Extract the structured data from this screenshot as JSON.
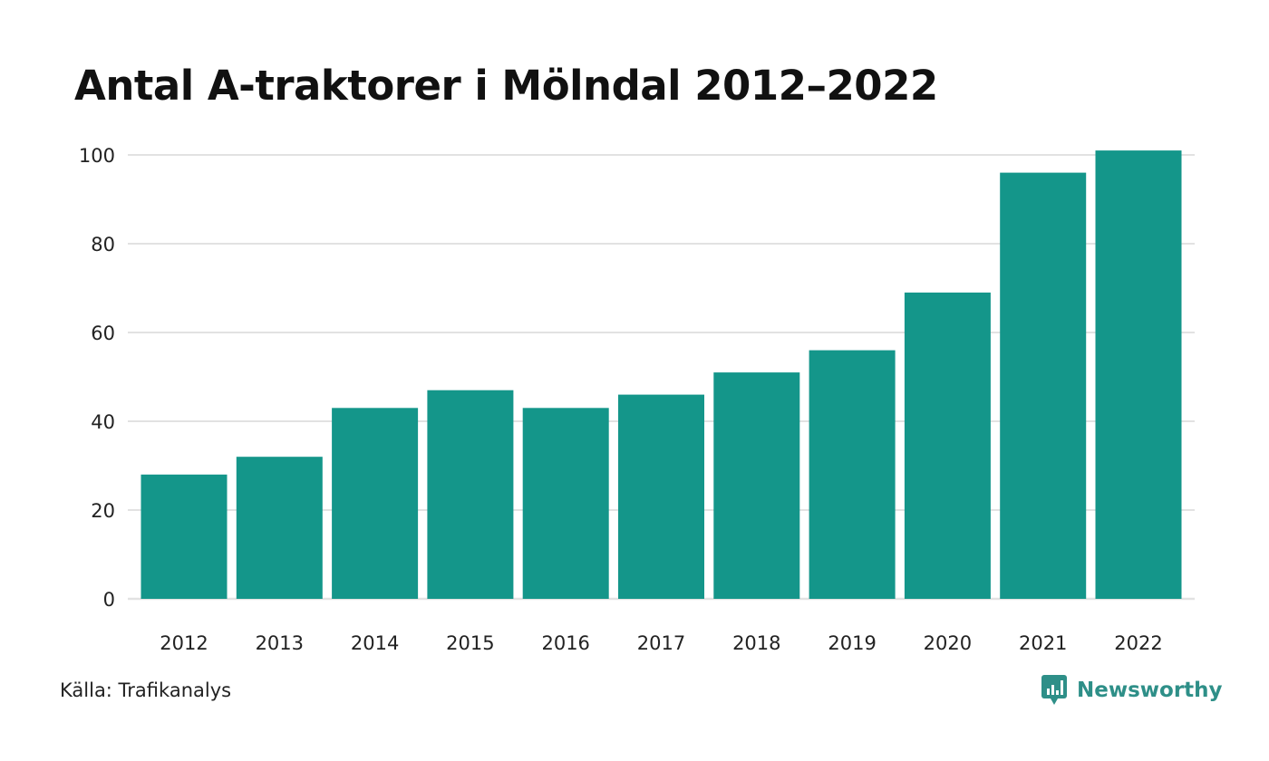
{
  "title": "Antal A-traktorer i Mölndal 2012–2022",
  "source": "Källa: Trafikanalys",
  "brand": {
    "name": "Newsworthy",
    "icon": "newsworthy-logo-icon"
  },
  "colors": {
    "bar": "#14968a",
    "grid": "#e2e2e2",
    "text": "#111111",
    "brand": "#2e8f88"
  },
  "chart_data": {
    "type": "bar",
    "title": "Antal A-traktorer i Mölndal 2012–2022",
    "xlabel": "",
    "ylabel": "",
    "categories": [
      "2012",
      "2013",
      "2014",
      "2015",
      "2016",
      "2017",
      "2018",
      "2019",
      "2020",
      "2021",
      "2022"
    ],
    "values": [
      28,
      32,
      43,
      47,
      43,
      46,
      51,
      56,
      69,
      96,
      101
    ],
    "ylim": [
      0,
      100
    ],
    "yticks": [
      0,
      20,
      40,
      60,
      80,
      100
    ],
    "grid": true,
    "legend": "none"
  }
}
